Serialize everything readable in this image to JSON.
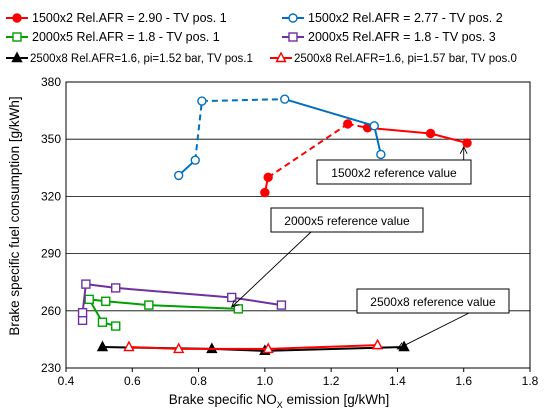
{
  "chart_data": {
    "type": "line",
    "xlabel_main": "Brake specific NO",
    "xlabel_sub": "X",
    "xlabel_tail": " emission [g/kWh]",
    "ylabel": "Brake specific fuel consumption [g/kWh]",
    "xlim": [
      0.4,
      1.8
    ],
    "ylim": [
      230,
      380
    ],
    "x_ticks": [
      "0.4",
      "0.6",
      "0.8",
      "1.0",
      "1.2",
      "1.4",
      "1.6",
      "1.8"
    ],
    "y_ticks": [
      "230",
      "260",
      "290",
      "320",
      "350",
      "380"
    ],
    "grid": "horizontal",
    "legend_position": "top",
    "series": [
      {
        "name": "1500x2 Rel.AFR = 2.90 - TV pos. 1",
        "color": "#ff0000",
        "marker": "circle-filled",
        "x": [
          1.0,
          1.01,
          1.25,
          1.31,
          1.5,
          1.61
        ],
        "y": [
          322,
          330,
          358,
          356,
          353,
          348
        ],
        "dashed_segments": [
          1,
          2
        ]
      },
      {
        "name": "1500x2 Rel.AFR = 2.77 - TV pos. 2",
        "color": "#0070c0",
        "marker": "circle-open",
        "x": [
          0.74,
          0.79,
          0.81,
          1.06,
          1.33,
          1.35
        ],
        "y": [
          331,
          339,
          370,
          371,
          357,
          342
        ],
        "dashed_segments": [
          1,
          2
        ]
      },
      {
        "name": "2000x5 Rel.AFR = 1.8 - TV pos. 1",
        "color": "#00a000",
        "marker": "square-open",
        "x": [
          0.55,
          0.51,
          0.47,
          0.52,
          0.65,
          0.92
        ],
        "y": [
          252,
          254,
          266,
          265,
          263,
          261
        ],
        "dashed_segments": []
      },
      {
        "name": "2000x5 Rel.AFR = 1.8 - TV pos. 3",
        "color": "#7030a0",
        "marker": "square-open",
        "x": [
          0.45,
          0.45,
          0.46,
          0.55,
          0.9,
          1.05
        ],
        "y": [
          255,
          259,
          274,
          272,
          267,
          263
        ],
        "dashed_segments": []
      },
      {
        "name": "2500x8 Rel.AFR=1.6, pi=1.52 bar, TV pos.1",
        "color": "#000000",
        "marker": "triangle-filled",
        "x": [
          0.51,
          0.84,
          1.0,
          1.42
        ],
        "y": [
          241,
          240,
          239,
          241
        ],
        "dashed_segments": []
      },
      {
        "name": "2500x8 Rel.AFR=1.6, pi=1.57 bar, TV pos.0",
        "color": "#ff0000",
        "marker": "triangle-open",
        "x": [
          0.59,
          0.74,
          1.01,
          1.34
        ],
        "y": [
          241,
          240,
          240,
          242
        ],
        "dashed_segments": []
      }
    ],
    "annotations": [
      {
        "text": "1500x2 reference value",
        "target": [
          1.6,
          346
        ]
      },
      {
        "text": "2000x5 reference value",
        "target": [
          0.9,
          262
        ]
      },
      {
        "text": "2500x8 reference value",
        "target": [
          1.4,
          240
        ]
      }
    ]
  }
}
